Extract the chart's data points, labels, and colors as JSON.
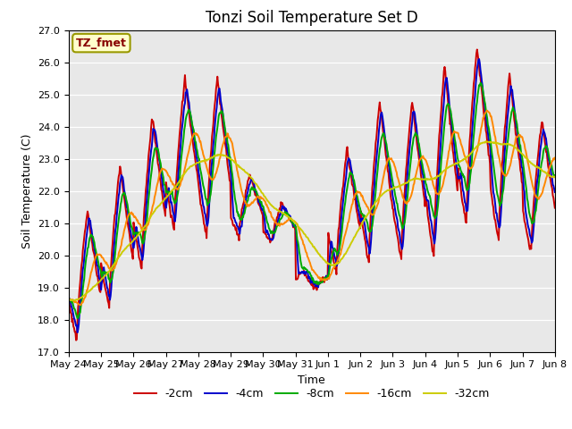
{
  "title": "Tonzi Soil Temperature Set D",
  "xlabel": "Time",
  "ylabel": "Soil Temperature (C)",
  "annotation": "TZ_fmet",
  "ylim": [
    17.0,
    27.0
  ],
  "yticks": [
    17.0,
    18.0,
    19.0,
    20.0,
    21.0,
    22.0,
    23.0,
    24.0,
    25.0,
    26.0,
    27.0
  ],
  "xtick_labels": [
    "May 24",
    "May 25",
    "May 26",
    "May 27",
    "May 28",
    "May 29",
    "May 30",
    "May 31",
    "Jun 1",
    "Jun 2",
    "Jun 3",
    "Jun 4",
    "Jun 5",
    "Jun 6",
    "Jun 7",
    "Jun 8"
  ],
  "colors": {
    "-2cm": "#cc0000",
    "-4cm": "#0000cc",
    "-8cm": "#00aa00",
    "-16cm": "#ff8800",
    "-32cm": "#cccc00"
  },
  "line_width": 1.4,
  "bg_color": "#e8e8e8",
  "fig_bg": "#ffffff",
  "title_fontsize": 12,
  "axis_fontsize": 9,
  "tick_fontsize": 8,
  "legend_fontsize": 9,
  "annotation_bg": "#ffffcc",
  "annotation_border": "#999900",
  "annotation_text_color": "#880000",
  "n_days": 15,
  "pts_per_day": 48
}
